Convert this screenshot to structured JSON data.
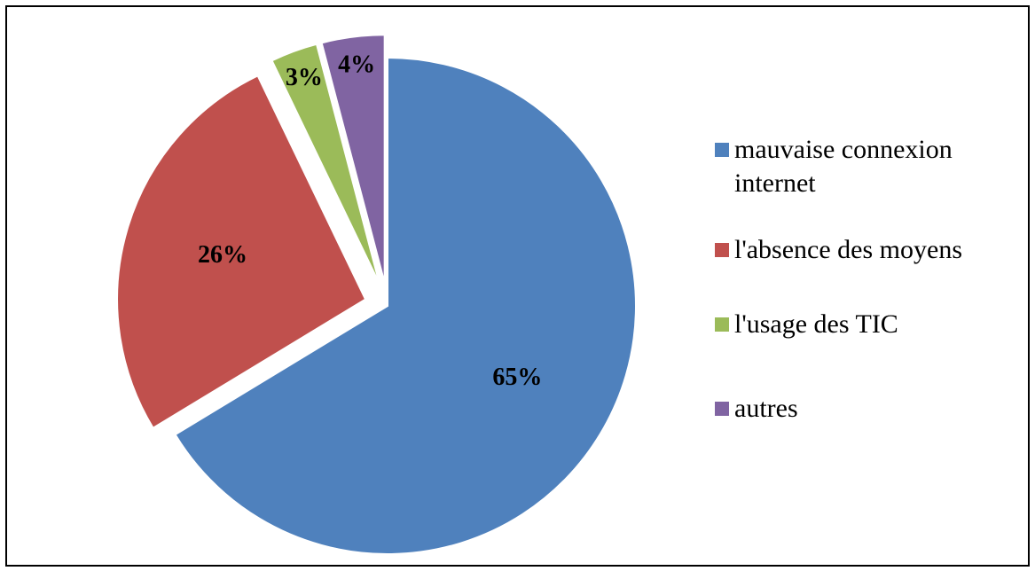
{
  "chart_data": {
    "type": "pie",
    "categories": [
      "mauvaise connexion internet",
      "l'absence des moyens",
      "l'usage des TIC",
      "autres"
    ],
    "values": [
      65,
      26,
      3,
      4
    ],
    "value_labels": [
      "65%",
      "26%",
      "3%",
      "4%"
    ],
    "colors": [
      "#4f81bd",
      "#c0504d",
      "#9bbb59",
      "#8064a2"
    ],
    "legend": "right"
  }
}
